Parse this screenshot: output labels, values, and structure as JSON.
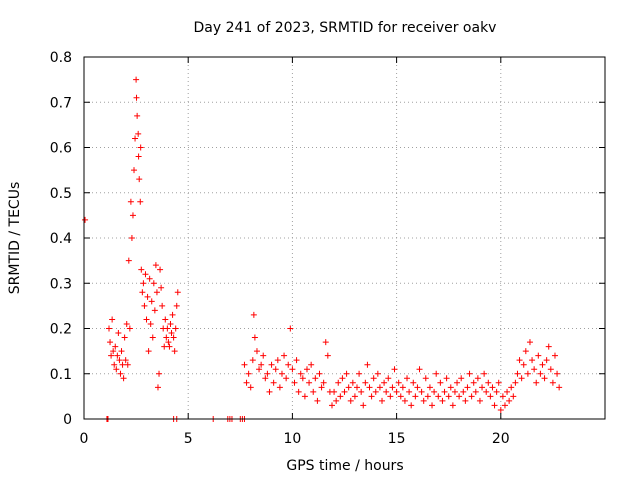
{
  "chart_data": {
    "type": "scatter",
    "title": "Day 241 of 2023, SRMTID for receiver oakv",
    "xlabel": "GPS time / hours",
    "ylabel": "SRMTID / TECUs",
    "xlim": [
      0,
      25
    ],
    "ylim": [
      0,
      0.8
    ],
    "x_ticks": [
      0,
      5,
      10,
      15,
      20
    ],
    "x_tick_labels": [
      "0",
      "5",
      "10",
      "15",
      "20"
    ],
    "y_ticks": [
      0,
      0.1,
      0.2,
      0.3,
      0.4,
      0.5,
      0.6,
      0.7,
      0.8
    ],
    "y_tick_labels": [
      "0",
      "0.1",
      "0.2",
      "0.3",
      "0.4",
      "0.5",
      "0.6",
      "0.7",
      "0.8"
    ],
    "grid": true,
    "marker": "+",
    "color": "#ff0000",
    "series": [
      {
        "name": "SRMTID",
        "points": [
          [
            0.05,
            0.44
          ],
          [
            1.1,
            0.0
          ],
          [
            1.12,
            0.0
          ],
          [
            1.15,
            0.0
          ],
          [
            1.2,
            0.2
          ],
          [
            1.25,
            0.17
          ],
          [
            1.3,
            0.14
          ],
          [
            1.35,
            0.22
          ],
          [
            1.4,
            0.15
          ],
          [
            1.45,
            0.12
          ],
          [
            1.5,
            0.16
          ],
          [
            1.55,
            0.11
          ],
          [
            1.6,
            0.14
          ],
          [
            1.65,
            0.19
          ],
          [
            1.7,
            0.13
          ],
          [
            1.75,
            0.1
          ],
          [
            1.8,
            0.15
          ],
          [
            1.85,
            0.12
          ],
          [
            1.9,
            0.09
          ],
          [
            1.95,
            0.18
          ],
          [
            2.0,
            0.13
          ],
          [
            2.05,
            0.21
          ],
          [
            2.1,
            0.12
          ],
          [
            2.15,
            0.35
          ],
          [
            2.2,
            0.2
          ],
          [
            2.25,
            0.48
          ],
          [
            2.3,
            0.4
          ],
          [
            2.35,
            0.45
          ],
          [
            2.4,
            0.55
          ],
          [
            2.45,
            0.62
          ],
          [
            2.5,
            0.75
          ],
          [
            2.52,
            0.71
          ],
          [
            2.55,
            0.67
          ],
          [
            2.6,
            0.63
          ],
          [
            2.62,
            0.58
          ],
          [
            2.65,
            0.53
          ],
          [
            2.7,
            0.48
          ],
          [
            2.72,
            0.6
          ],
          [
            2.75,
            0.33
          ],
          [
            2.8,
            0.28
          ],
          [
            2.85,
            0.3
          ],
          [
            2.9,
            0.25
          ],
          [
            2.95,
            0.32
          ],
          [
            3.0,
            0.22
          ],
          [
            3.05,
            0.27
          ],
          [
            3.1,
            0.15
          ],
          [
            3.15,
            0.31
          ],
          [
            3.2,
            0.21
          ],
          [
            3.25,
            0.26
          ],
          [
            3.3,
            0.18
          ],
          [
            3.35,
            0.3
          ],
          [
            3.4,
            0.24
          ],
          [
            3.45,
            0.34
          ],
          [
            3.5,
            0.28
          ],
          [
            3.55,
            0.07
          ],
          [
            3.6,
            0.1
          ],
          [
            3.65,
            0.33
          ],
          [
            3.7,
            0.29
          ],
          [
            3.75,
            0.25
          ],
          [
            3.8,
            0.2
          ],
          [
            3.85,
            0.16
          ],
          [
            3.9,
            0.22
          ],
          [
            3.95,
            0.18
          ],
          [
            4.0,
            0.2
          ],
          [
            4.05,
            0.17
          ],
          [
            4.1,
            0.16
          ],
          [
            4.15,
            0.21
          ],
          [
            4.2,
            0.19
          ],
          [
            4.25,
            0.23
          ],
          [
            4.3,
            0.18
          ],
          [
            4.35,
            0.15
          ],
          [
            4.4,
            0.2
          ],
          [
            4.45,
            0.25
          ],
          [
            4.5,
            0.28
          ],
          [
            4.3,
            0.0
          ],
          [
            4.45,
            0.0
          ],
          [
            6.2,
            0.0
          ],
          [
            6.9,
            0.0
          ],
          [
            7.0,
            0.0
          ],
          [
            7.1,
            0.0
          ],
          [
            7.5,
            0.0
          ],
          [
            7.6,
            0.0
          ],
          [
            7.7,
            0.0
          ],
          [
            7.7,
            0.12
          ],
          [
            7.8,
            0.08
          ],
          [
            7.9,
            0.1
          ],
          [
            8.0,
            0.07
          ],
          [
            8.1,
            0.13
          ],
          [
            8.15,
            0.23
          ],
          [
            8.2,
            0.18
          ],
          [
            8.3,
            0.15
          ],
          [
            8.4,
            0.11
          ],
          [
            8.5,
            0.12
          ],
          [
            8.6,
            0.14
          ],
          [
            8.7,
            0.09
          ],
          [
            8.8,
            0.1
          ],
          [
            8.9,
            0.06
          ],
          [
            9.0,
            0.12
          ],
          [
            9.1,
            0.08
          ],
          [
            9.2,
            0.11
          ],
          [
            9.3,
            0.13
          ],
          [
            9.4,
            0.07
          ],
          [
            9.5,
            0.1
          ],
          [
            9.6,
            0.14
          ],
          [
            9.7,
            0.09
          ],
          [
            9.8,
            0.12
          ],
          [
            9.9,
            0.2
          ],
          [
            10.0,
            0.11
          ],
          [
            10.1,
            0.08
          ],
          [
            10.2,
            0.13
          ],
          [
            10.3,
            0.06
          ],
          [
            10.4,
            0.1
          ],
          [
            10.5,
            0.09
          ],
          [
            10.6,
            0.05
          ],
          [
            10.7,
            0.11
          ],
          [
            10.8,
            0.08
          ],
          [
            10.9,
            0.12
          ],
          [
            11.0,
            0.06
          ],
          [
            11.1,
            0.09
          ],
          [
            11.2,
            0.04
          ],
          [
            11.3,
            0.1
          ],
          [
            11.4,
            0.07
          ],
          [
            11.5,
            0.08
          ],
          [
            11.6,
            0.17
          ],
          [
            11.7,
            0.14
          ],
          [
            11.8,
            0.06
          ],
          [
            11.9,
            0.03
          ],
          [
            12.0,
            0.06
          ],
          [
            12.1,
            0.04
          ],
          [
            12.2,
            0.08
          ],
          [
            12.3,
            0.05
          ],
          [
            12.4,
            0.09
          ],
          [
            12.5,
            0.06
          ],
          [
            12.6,
            0.1
          ],
          [
            12.7,
            0.07
          ],
          [
            12.8,
            0.04
          ],
          [
            12.9,
            0.08
          ],
          [
            13.0,
            0.05
          ],
          [
            13.1,
            0.07
          ],
          [
            13.2,
            0.1
          ],
          [
            13.3,
            0.06
          ],
          [
            13.4,
            0.03
          ],
          [
            13.5,
            0.08
          ],
          [
            13.6,
            0.12
          ],
          [
            13.7,
            0.07
          ],
          [
            13.8,
            0.05
          ],
          [
            13.9,
            0.09
          ],
          [
            14.0,
            0.06
          ],
          [
            14.1,
            0.1
          ],
          [
            14.2,
            0.07
          ],
          [
            14.3,
            0.04
          ],
          [
            14.4,
            0.08
          ],
          [
            14.5,
            0.06
          ],
          [
            14.6,
            0.09
          ],
          [
            14.7,
            0.05
          ],
          [
            14.8,
            0.07
          ],
          [
            14.9,
            0.11
          ],
          [
            15.0,
            0.06
          ],
          [
            15.1,
            0.08
          ],
          [
            15.2,
            0.05
          ],
          [
            15.3,
            0.07
          ],
          [
            15.4,
            0.04
          ],
          [
            15.5,
            0.09
          ],
          [
            15.6,
            0.06
          ],
          [
            15.7,
            0.03
          ],
          [
            15.8,
            0.08
          ],
          [
            15.9,
            0.05
          ],
          [
            16.0,
            0.07
          ],
          [
            16.1,
            0.11
          ],
          [
            16.2,
            0.06
          ],
          [
            16.3,
            0.04
          ],
          [
            16.4,
            0.09
          ],
          [
            16.5,
            0.05
          ],
          [
            16.6,
            0.07
          ],
          [
            16.7,
            0.03
          ],
          [
            16.8,
            0.06
          ],
          [
            16.9,
            0.1
          ],
          [
            17.0,
            0.05
          ],
          [
            17.1,
            0.08
          ],
          [
            17.2,
            0.04
          ],
          [
            17.3,
            0.06
          ],
          [
            17.4,
            0.09
          ],
          [
            17.5,
            0.05
          ],
          [
            17.6,
            0.07
          ],
          [
            17.7,
            0.03
          ],
          [
            17.8,
            0.06
          ],
          [
            17.9,
            0.08
          ],
          [
            18.0,
            0.05
          ],
          [
            18.1,
            0.09
          ],
          [
            18.2,
            0.06
          ],
          [
            18.3,
            0.04
          ],
          [
            18.4,
            0.07
          ],
          [
            18.5,
            0.1
          ],
          [
            18.6,
            0.05
          ],
          [
            18.7,
            0.08
          ],
          [
            18.8,
            0.06
          ],
          [
            18.9,
            0.09
          ],
          [
            19.0,
            0.04
          ],
          [
            19.1,
            0.07
          ],
          [
            19.2,
            0.1
          ],
          [
            19.3,
            0.06
          ],
          [
            19.4,
            0.08
          ],
          [
            19.5,
            0.05
          ],
          [
            19.6,
            0.07
          ],
          [
            19.7,
            0.03
          ],
          [
            19.8,
            0.06
          ],
          [
            19.9,
            0.08
          ],
          [
            20.0,
            0.02
          ],
          [
            20.1,
            0.05
          ],
          [
            20.2,
            0.03
          ],
          [
            20.3,
            0.06
          ],
          [
            20.4,
            0.04
          ],
          [
            20.5,
            0.07
          ],
          [
            20.6,
            0.05
          ],
          [
            20.7,
            0.08
          ],
          [
            20.8,
            0.1
          ],
          [
            20.9,
            0.13
          ],
          [
            21.0,
            0.09
          ],
          [
            21.1,
            0.12
          ],
          [
            21.2,
            0.15
          ],
          [
            21.3,
            0.1
          ],
          [
            21.4,
            0.17
          ],
          [
            21.5,
            0.13
          ],
          [
            21.6,
            0.11
          ],
          [
            21.7,
            0.08
          ],
          [
            21.8,
            0.14
          ],
          [
            21.9,
            0.1
          ],
          [
            22.0,
            0.12
          ],
          [
            22.1,
            0.09
          ],
          [
            22.2,
            0.13
          ],
          [
            22.3,
            0.16
          ],
          [
            22.4,
            0.11
          ],
          [
            22.5,
            0.08
          ],
          [
            22.6,
            0.14
          ],
          [
            22.7,
            0.1
          ],
          [
            22.8,
            0.07
          ]
        ]
      }
    ]
  }
}
